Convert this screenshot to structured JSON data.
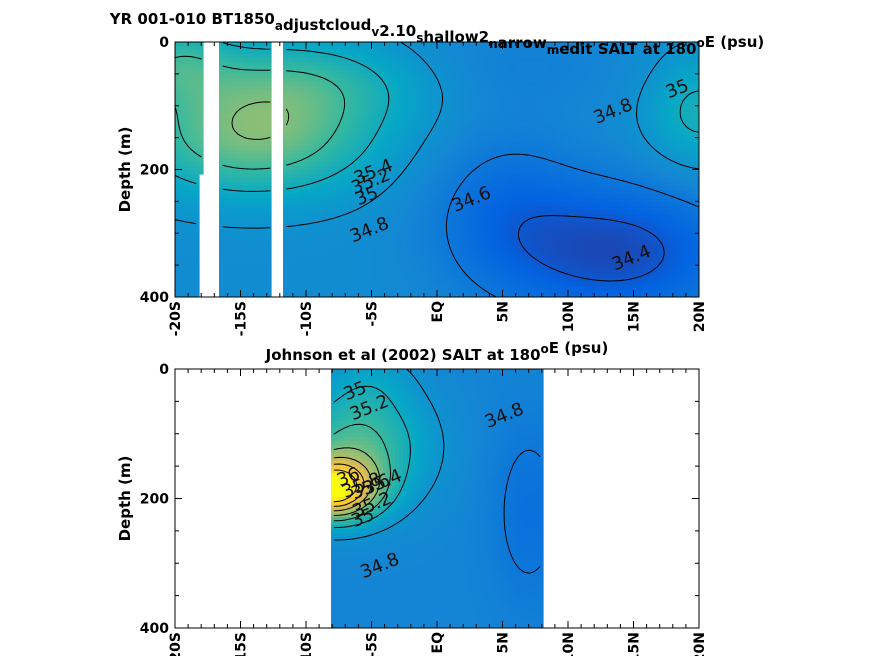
{
  "chart_data": [
    {
      "type": "heatmap",
      "panel": "model",
      "title_parts": [
        {
          "t": "YR 001-010 BT1850"
        },
        {
          "t": "a",
          "sub": true
        },
        {
          "t": "djustcloud"
        },
        {
          "t": "v",
          "sub": true
        },
        {
          "t": "2.10"
        },
        {
          "t": "s",
          "sub": true
        },
        {
          "t": "hallow2"
        },
        {
          "t": "n",
          "sub": true
        },
        {
          "t": "arrow"
        },
        {
          "t": "m",
          "sub": true
        },
        {
          "t": "edit SALT at 180"
        },
        {
          "t": "o",
          "sup": true
        },
        {
          "t": "E (psu)"
        }
      ],
      "ylabel": "Depth (m)",
      "xlabel": "",
      "x_ticks": [
        "-20S",
        "-15S",
        "-10S",
        "-5S",
        "EQ",
        "5N",
        "10N",
        "15N",
        "20N"
      ],
      "y_ticks": [
        "0",
        "200",
        "400"
      ],
      "xlim": [
        -20,
        20
      ],
      "ylim": [
        0,
        400
      ],
      "colormap": "parula",
      "color_range_psu": [
        34.2,
        36.2
      ],
      "masked_lat_ranges": [
        [
          -17.8,
          -16.6
        ],
        [
          -12.7,
          -11.8
        ]
      ],
      "masked_lower_lat_ranges": [
        [
          -18.3,
          -17.8,
          205,
          400
        ]
      ],
      "contour_labels": [
        {
          "text": "35.4",
          "lat": -4.7,
          "depth": 212
        },
        {
          "text": "35.2",
          "lat": -4.9,
          "depth": 227
        },
        {
          "text": "35",
          "lat": -5.2,
          "depth": 250
        },
        {
          "text": "34.8",
          "lat": -5.0,
          "depth": 303
        },
        {
          "text": "34.6",
          "lat": 2.8,
          "depth": 255
        },
        {
          "text": "34.8",
          "lat": 13.6,
          "depth": 117
        },
        {
          "text": "35",
          "lat": 18.5,
          "depth": 82
        },
        {
          "text": "34.4",
          "lat": 15.0,
          "depth": 347
        }
      ]
    },
    {
      "type": "heatmap",
      "panel": "observations",
      "title_parts": [
        {
          "t": "Johnson et al (2002) SALT at 180"
        },
        {
          "t": "o",
          "sup": true
        },
        {
          "t": "E (psu)"
        }
      ],
      "ylabel": "Depth (m)",
      "xlabel": "",
      "x_ticks": [
        "-20S",
        "-15S",
        "-10S",
        "-5S",
        "EQ",
        "5N",
        "10N",
        "15N",
        "20N"
      ],
      "y_ticks": [
        "0",
        "200",
        "400"
      ],
      "xlim": [
        -20,
        20
      ],
      "ylim": [
        0,
        400
      ],
      "colormap": "parula",
      "color_range_psu": [
        34.2,
        36.2
      ],
      "data_lat_range": [
        -8,
        8
      ],
      "contour_labels": [
        {
          "text": "35",
          "lat": -6.1,
          "depth": 42
        },
        {
          "text": "35.2",
          "lat": -5.0,
          "depth": 68
        },
        {
          "text": "34.8",
          "lat": 5.3,
          "depth": 80
        },
        {
          "text": "36",
          "lat": -6.6,
          "depth": 175
        },
        {
          "text": "35.8",
          "lat": -5.6,
          "depth": 188
        },
        {
          "text": "35.6",
          "lat": -4.9,
          "depth": 190
        },
        {
          "text": "35.4",
          "lat": -4.0,
          "depth": 183
        },
        {
          "text": "35.2",
          "lat": -4.8,
          "depth": 218
        },
        {
          "text": "35",
          "lat": -5.5,
          "depth": 238
        },
        {
          "text": "34.8",
          "lat": -4.2,
          "depth": 312
        }
      ]
    }
  ]
}
